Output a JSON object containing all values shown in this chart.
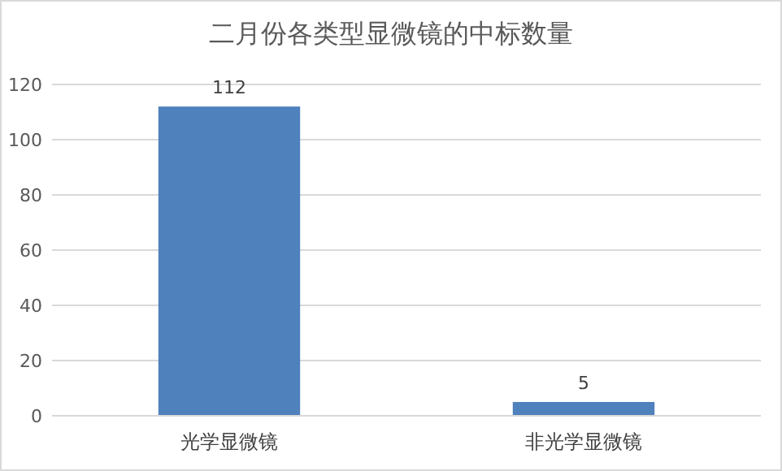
{
  "chart_data": {
    "type": "bar",
    "title": "二月份各类型显微镜的中标数量",
    "categories": [
      "光学显微镜",
      "非光学显微镜"
    ],
    "values": [
      112,
      5
    ],
    "color": "#4f81bd",
    "ylim": [
      0,
      120
    ],
    "yticks": [
      0,
      20,
      40,
      60,
      80,
      100,
      120
    ],
    "grid": "y",
    "data_labels": true
  }
}
